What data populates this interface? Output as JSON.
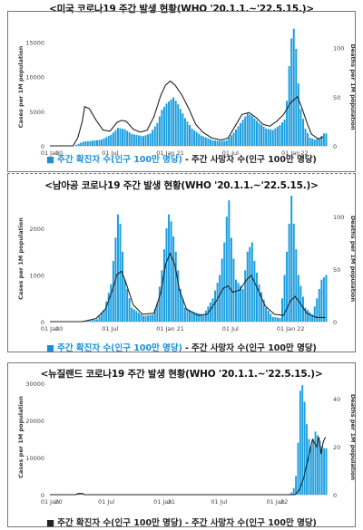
{
  "colors": {
    "bars": "#1a9ee0",
    "line": "#222222",
    "axis": "#888888",
    "caption_blue": "#1c8fd6"
  },
  "legend": {
    "cases": "주간 확진자 수(인구 100만 명당)",
    "deaths": "주간 사망자 수(인구 100만 명당)",
    "cases_marker": "■",
    "deaths_marker": "-"
  },
  "chart_data": [
    {
      "type": "bar",
      "title": "<미국 코로나19 주간 발생 현황(WHO '20.1.1.~'22.5.15.)>",
      "ylabel": "Cases per 1M population",
      "y2label": "Deaths per 1M population",
      "ylim": [
        0,
        17000
      ],
      "y2lim": [
        0,
        120
      ],
      "yticks": [
        "0",
        "5000",
        "10000",
        "15000"
      ],
      "y2ticks": [
        "0",
        "50",
        "100"
      ],
      "xticks": [
        {
          "label": "01 Jan",
          "pos": 0
        },
        {
          "label": "20",
          "pos": 4
        },
        {
          "label": "01 Jul",
          "pos": 26
        },
        {
          "label": "01 Jan 21",
          "pos": 52
        },
        {
          "label": "01 Jul",
          "pos": 78
        },
        {
          "label": "01 Jan",
          "pos": 104
        },
        {
          "label": "22",
          "pos": 110
        }
      ],
      "anchors_cases": [
        [
          0,
          0
        ],
        [
          10,
          0
        ],
        [
          12,
          300
        ],
        [
          14,
          600
        ],
        [
          17,
          700
        ],
        [
          22,
          900
        ],
        [
          26,
          1600
        ],
        [
          29,
          2600
        ],
        [
          32,
          2400
        ],
        [
          35,
          1700
        ],
        [
          40,
          1400
        ],
        [
          43,
          1800
        ],
        [
          46,
          3300
        ],
        [
          48,
          5200
        ],
        [
          50,
          6100
        ],
        [
          52,
          6700
        ],
        [
          53,
          7000
        ],
        [
          55,
          6000
        ],
        [
          58,
          4000
        ],
        [
          61,
          2500
        ],
        [
          65,
          1500
        ],
        [
          70,
          800
        ],
        [
          74,
          700
        ],
        [
          76,
          800
        ],
        [
          79,
          1900
        ],
        [
          82,
          3300
        ],
        [
          85,
          4700
        ],
        [
          87,
          4300
        ],
        [
          90,
          3300
        ],
        [
          93,
          2500
        ],
        [
          96,
          2300
        ],
        [
          99,
          3000
        ],
        [
          101,
          3800
        ],
        [
          102,
          6500
        ],
        [
          103,
          11500
        ],
        [
          104,
          15500
        ],
        [
          105,
          16900
        ],
        [
          106,
          14000
        ],
        [
          107,
          9000
        ],
        [
          108,
          5300
        ],
        [
          110,
          2500
        ],
        [
          112,
          1200
        ],
        [
          114,
          900
        ],
        [
          116,
          1100
        ],
        [
          118,
          1800
        ]
      ],
      "anchors_deaths": [
        [
          0,
          0
        ],
        [
          10,
          0
        ],
        [
          12,
          8
        ],
        [
          14,
          25
        ],
        [
          15,
          40
        ],
        [
          17,
          38
        ],
        [
          20,
          26
        ],
        [
          23,
          16
        ],
        [
          26,
          15
        ],
        [
          29,
          24
        ],
        [
          31,
          26
        ],
        [
          33,
          25
        ],
        [
          36,
          17
        ],
        [
          39,
          14
        ],
        [
          42,
          16
        ],
        [
          45,
          30
        ],
        [
          48,
          52
        ],
        [
          50,
          62
        ],
        [
          52,
          66
        ],
        [
          54,
          62
        ],
        [
          57,
          52
        ],
        [
          60,
          38
        ],
        [
          63,
          22
        ],
        [
          66,
          14
        ],
        [
          70,
          8
        ],
        [
          74,
          6
        ],
        [
          77,
          8
        ],
        [
          80,
          20
        ],
        [
          83,
          32
        ],
        [
          86,
          34
        ],
        [
          89,
          29
        ],
        [
          92,
          22
        ],
        [
          95,
          20
        ],
        [
          98,
          25
        ],
        [
          101,
          32
        ],
        [
          104,
          44
        ],
        [
          107,
          50
        ],
        [
          109,
          38
        ],
        [
          111,
          24
        ],
        [
          113,
          12
        ],
        [
          116,
          7
        ],
        [
          118,
          9
        ]
      ]
    },
    {
      "type": "bar",
      "title": "<남아공 코로나19 주간 발생 현황(WHO '20.1.1.~'22.5.15.)>",
      "ylabel": "Cases per 1M population",
      "y2label": "Deaths per 1M population",
      "ylim": [
        0,
        2700
      ],
      "y2lim": [
        0,
        120
      ],
      "yticks": [
        "0",
        "1000",
        "2000"
      ],
      "y2ticks": [
        "0",
        "50",
        "100"
      ],
      "xticks": [
        {
          "label": "01 Jan",
          "pos": 0
        },
        {
          "label": "20",
          "pos": 4
        },
        {
          "label": "01 Jul",
          "pos": 26
        },
        {
          "label": "01 Jan 21",
          "pos": 52
        },
        {
          "label": "01 Jul",
          "pos": 78
        },
        {
          "label": "01 Jan 22",
          "pos": 104
        }
      ],
      "anchors_cases": [
        [
          0,
          0
        ],
        [
          10,
          0
        ],
        [
          15,
          5
        ],
        [
          20,
          50
        ],
        [
          23,
          250
        ],
        [
          26,
          800
        ],
        [
          28,
          1800
        ],
        [
          29,
          2300
        ],
        [
          30,
          2100
        ],
        [
          32,
          900
        ],
        [
          35,
          300
        ],
        [
          40,
          120
        ],
        [
          44,
          150
        ],
        [
          46,
          400
        ],
        [
          48,
          1100
        ],
        [
          50,
          2000
        ],
        [
          51,
          2300
        ],
        [
          52,
          2150
        ],
        [
          54,
          1500
        ],
        [
          56,
          700
        ],
        [
          58,
          300
        ],
        [
          62,
          200
        ],
        [
          66,
          150
        ],
        [
          70,
          500
        ],
        [
          73,
          1000
        ],
        [
          75,
          1700
        ],
        [
          76,
          2250
        ],
        [
          77,
          2600
        ],
        [
          78,
          1800
        ],
        [
          80,
          900
        ],
        [
          83,
          700
        ],
        [
          85,
          1500
        ],
        [
          87,
          1700
        ],
        [
          88,
          1300
        ],
        [
          90,
          800
        ],
        [
          93,
          300
        ],
        [
          96,
          100
        ],
        [
          99,
          80
        ],
        [
          100,
          500
        ],
        [
          102,
          1500
        ],
        [
          104,
          2700
        ],
        [
          105,
          2100
        ],
        [
          107,
          1000
        ],
        [
          110,
          300
        ],
        [
          113,
          150
        ],
        [
          115,
          500
        ],
        [
          117,
          900
        ],
        [
          119,
          1000
        ]
      ],
      "anchors_deaths": [
        [
          0,
          0
        ],
        [
          14,
          0
        ],
        [
          20,
          3
        ],
        [
          24,
          12
        ],
        [
          27,
          30
        ],
        [
          29,
          45
        ],
        [
          31,
          48
        ],
        [
          33,
          36
        ],
        [
          36,
          16
        ],
        [
          40,
          7
        ],
        [
          45,
          8
        ],
        [
          48,
          28
        ],
        [
          50,
          55
        ],
        [
          52,
          65
        ],
        [
          54,
          54
        ],
        [
          56,
          30
        ],
        [
          59,
          12
        ],
        [
          64,
          6
        ],
        [
          68,
          7
        ],
        [
          72,
          20
        ],
        [
          75,
          32
        ],
        [
          77,
          34
        ],
        [
          79,
          28
        ],
        [
          82,
          30
        ],
        [
          85,
          40
        ],
        [
          87,
          44
        ],
        [
          90,
          30
        ],
        [
          93,
          15
        ],
        [
          97,
          7
        ],
        [
          101,
          6
        ],
        [
          104,
          20
        ],
        [
          106,
          24
        ],
        [
          108,
          18
        ],
        [
          111,
          8
        ],
        [
          115,
          4
        ],
        [
          119,
          4
        ]
      ]
    },
    {
      "type": "bar",
      "title": "<뉴질랜드 코로나19 주간 발생 현황(WHO '20.1.1.~'22.5.15.)>",
      "ylabel": "Cases per 1M population",
      "y2label": "Deaths per 1M population",
      "ylim": [
        0,
        31000
      ],
      "y2lim": [
        0,
        48
      ],
      "yticks": [
        "0",
        "10000",
        "20000",
        "30000"
      ],
      "y2ticks": [
        "0",
        "20",
        "40"
      ],
      "xticks": [
        {
          "label": "01 Jan",
          "pos": 0
        },
        {
          "label": "20",
          "pos": 4
        },
        {
          "label": "01 Jul",
          "pos": 26
        },
        {
          "label": "01 Jan",
          "pos": 52
        },
        {
          "label": "21",
          "pos": 56
        },
        {
          "label": "01 Jul",
          "pos": 78
        },
        {
          "label": "01 Jan",
          "pos": 104
        },
        {
          "label": "22",
          "pos": 108
        }
      ],
      "anchors_cases": [
        [
          0,
          0
        ],
        [
          11,
          0
        ],
        [
          12,
          300
        ],
        [
          14,
          400
        ],
        [
          15,
          80
        ],
        [
          16,
          0
        ],
        [
          108,
          0
        ],
        [
          110,
          200
        ],
        [
          111,
          600
        ],
        [
          112,
          1800
        ],
        [
          113,
          5000
        ],
        [
          114,
          14000
        ],
        [
          115,
          28000
        ],
        [
          116,
          29500
        ],
        [
          117,
          25000
        ],
        [
          118,
          19000
        ],
        [
          119,
          15000
        ],
        [
          120,
          13000
        ],
        [
          121,
          15000
        ],
        [
          122,
          17000
        ],
        [
          123,
          16000
        ],
        [
          124,
          14500
        ],
        [
          125,
          13000
        ],
        [
          126,
          12500
        ]
      ],
      "anchors_deaths": [
        [
          0,
          0
        ],
        [
          12,
          0
        ],
        [
          13,
          0.5
        ],
        [
          15,
          0.5
        ],
        [
          16,
          0
        ],
        [
          113,
          0
        ],
        [
          115,
          2
        ],
        [
          117,
          7
        ],
        [
          119,
          15
        ],
        [
          121,
          23
        ],
        [
          123,
          20
        ],
        [
          124,
          24
        ],
        [
          125,
          17
        ],
        [
          126,
          22
        ],
        [
          127,
          24
        ]
      ]
    }
  ]
}
